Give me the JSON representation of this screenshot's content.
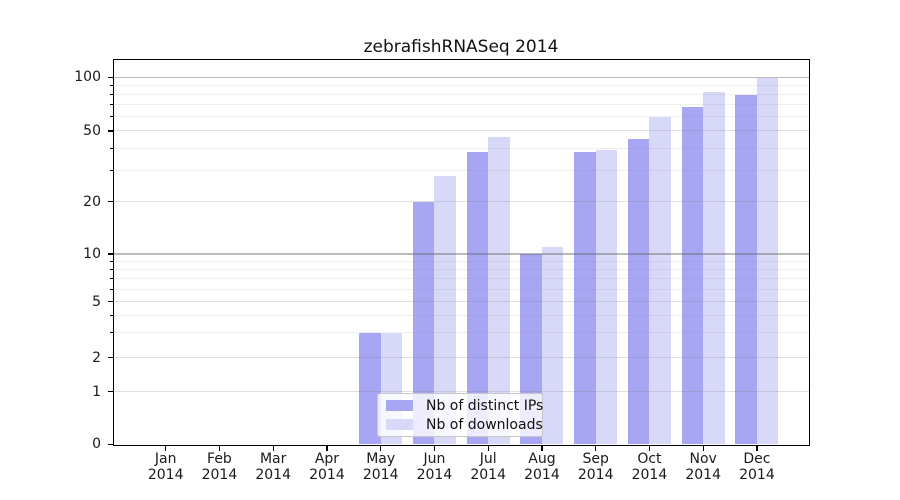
{
  "chart_data": {
    "type": "bar",
    "title": "zebrafishRNASeq 2014",
    "categories": [
      "Jan",
      "Feb",
      "Mar",
      "Apr",
      "May",
      "Jun",
      "Jul",
      "Aug",
      "Sep",
      "Oct",
      "Nov",
      "Dec"
    ],
    "year": "2014",
    "series": [
      {
        "name": "Nb of distinct IPs",
        "color": "#a6a6f2",
        "values": [
          0,
          0,
          0,
          0,
          3,
          20,
          38,
          10,
          38,
          45,
          68,
          80
        ]
      },
      {
        "name": "Nb of downloads",
        "color": "#d8d8f8",
        "values": [
          0,
          0,
          0,
          0,
          3,
          28,
          46,
          11,
          39,
          60,
          83,
          99
        ]
      }
    ],
    "yticks": [
      0,
      1,
      2,
      5,
      10,
      20,
      50,
      100
    ],
    "minor_yticks": [
      3,
      4,
      6,
      7,
      8,
      9,
      30,
      40,
      60,
      70,
      80,
      90
    ],
    "scale": "log-like",
    "ylim": [
      0,
      110
    ],
    "grid": true,
    "legend_position": "lower center",
    "xlabel": "",
    "ylabel": ""
  },
  "colors": {
    "bar_distinct_ips": "#a6a6f2",
    "bar_downloads": "#d8d8f8",
    "grid_major": "#b3b3b3",
    "grid_minor": "#e7e7e7",
    "axis": "#000000",
    "background": "#ffffff",
    "legend_border": "#c8c8c8",
    "text": "#1a1a1a"
  }
}
